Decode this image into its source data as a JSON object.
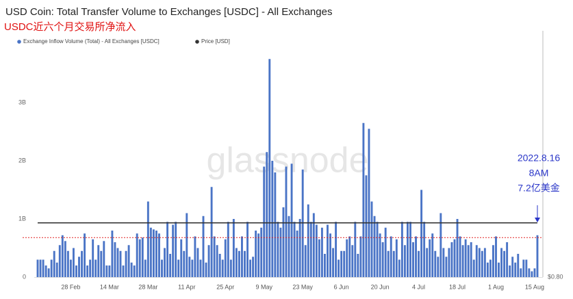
{
  "chart_data": {
    "type": "bar",
    "title": "USD Coin: Total Transfer Volume to Exchanges [USDC] - All Exchanges",
    "subtitle": "USDC近六个月交易所净流入",
    "watermark": "glassnode",
    "categories": [
      null,
      null,
      null,
      null,
      null,
      null,
      null,
      null,
      null,
      null,
      null,
      null,
      "28 Feb",
      null,
      null,
      null,
      null,
      null,
      null,
      null,
      null,
      null,
      null,
      null,
      null,
      null,
      "14 Mar",
      null,
      null,
      null,
      null,
      null,
      null,
      null,
      null,
      null,
      null,
      null,
      null,
      null,
      "28 Mar",
      null,
      null,
      null,
      null,
      null,
      null,
      null,
      null,
      null,
      null,
      null,
      null,
      null,
      "11 Apr",
      null,
      null,
      null,
      null,
      null,
      null,
      null,
      null,
      null,
      null,
      null,
      null,
      null,
      "25 Apr",
      null,
      null,
      null,
      null,
      null,
      null,
      null,
      null,
      null,
      null,
      null,
      null,
      null,
      "9 May",
      null,
      null,
      null,
      null,
      null,
      null,
      null,
      null,
      null,
      null,
      null,
      null,
      null,
      "23 May",
      null,
      null,
      null,
      null,
      null,
      null,
      null,
      null,
      null,
      null,
      null,
      null,
      null,
      "6 Jun",
      null,
      null,
      null,
      null,
      null,
      null,
      null,
      null,
      null,
      null,
      null,
      null,
      null,
      "20 Jun",
      null,
      null,
      null,
      null,
      null,
      null,
      null,
      null,
      null,
      null,
      null,
      null,
      null,
      "4 Jul",
      null,
      null,
      null,
      null,
      null,
      null,
      null,
      null,
      null,
      null,
      null,
      null,
      null,
      "18 Jul",
      null,
      null,
      null,
      null,
      null,
      null,
      null,
      null,
      null,
      null,
      null,
      null,
      null,
      "1 Aug",
      null,
      null,
      null,
      null,
      null,
      null,
      null,
      null,
      null,
      null,
      null,
      null,
      null,
      "15 Aug",
      null
    ],
    "series": [
      {
        "name": "Exchange Inflow Volume (Total) - All Exchanges [USDC]",
        "color": "#4a74c6",
        "values": [
          0.3,
          0.3,
          0.3,
          0.2,
          0.15,
          0.3,
          0.45,
          0.25,
          0.55,
          0.72,
          0.62,
          0.45,
          0.3,
          0.5,
          0.2,
          0.35,
          0.45,
          0.75,
          0.2,
          0.3,
          0.65,
          0.3,
          0.55,
          0.45,
          0.62,
          0.2,
          0.2,
          0.8,
          0.6,
          0.5,
          0.45,
          0.2,
          0.45,
          0.55,
          0.25,
          0.2,
          0.75,
          0.65,
          0.68,
          0.3,
          1.3,
          0.85,
          0.82,
          0.8,
          0.75,
          0.3,
          0.5,
          0.95,
          0.4,
          0.9,
          0.95,
          0.3,
          0.65,
          0.45,
          1.1,
          0.35,
          0.3,
          0.7,
          0.5,
          0.3,
          1.05,
          0.25,
          0.55,
          1.55,
          0.7,
          0.55,
          0.4,
          0.3,
          0.65,
          0.95,
          0.3,
          1.0,
          0.5,
          0.45,
          0.7,
          0.45,
          0.95,
          0.3,
          0.35,
          0.8,
          0.75,
          0.85,
          1.9,
          2.15,
          3.75,
          2.0,
          1.8,
          0.95,
          0.85,
          1.2,
          1.9,
          1.05,
          1.95,
          0.95,
          0.8,
          1.0,
          1.85,
          0.55,
          1.25,
          0.95,
          1.1,
          0.9,
          0.65,
          0.85,
          0.4,
          0.9,
          0.75,
          0.5,
          0.95,
          0.3,
          0.45,
          0.45,
          0.65,
          0.7,
          0.55,
          0.95,
          0.4,
          0.7,
          2.65,
          1.75,
          2.55,
          1.3,
          1.05,
          0.95,
          0.75,
          0.6,
          0.85,
          0.45,
          0.7,
          0.45,
          0.65,
          0.3,
          0.95,
          0.55,
          0.95,
          0.95,
          0.6,
          0.7,
          0.45,
          1.5,
          0.95,
          0.5,
          0.65,
          0.75,
          0.45,
          0.35,
          1.1,
          0.5,
          0.35,
          0.5,
          0.6,
          0.65,
          1.0,
          0.7,
          0.55,
          0.65,
          0.55,
          0.6,
          0.3,
          0.55,
          0.5,
          0.45,
          0.5,
          0.25,
          0.3,
          0.55,
          0.7,
          0.25,
          0.5,
          0.45,
          0.6,
          0.2,
          0.35,
          0.25,
          0.4,
          0.15,
          0.3,
          0.3,
          0.15,
          0.1,
          0.15,
          0.72
        ]
      },
      {
        "name": "Price [USD]",
        "color": "#333333",
        "axis": "y2",
        "values": [
          1,
          1,
          1,
          1,
          1,
          1,
          1,
          1,
          1,
          1,
          1,
          1,
          1,
          1,
          1,
          1,
          1,
          1,
          1,
          1,
          1,
          1,
          1,
          1,
          1,
          1,
          1,
          1,
          1,
          1,
          1,
          1,
          1,
          1,
          1,
          1,
          1,
          1,
          1,
          1,
          1,
          1,
          1,
          1,
          1,
          1,
          1,
          1,
          1,
          1,
          1,
          1,
          1,
          1,
          1,
          1,
          1,
          1,
          1,
          1,
          1,
          1,
          1,
          1,
          1,
          1,
          1,
          1,
          1,
          1,
          1,
          1,
          1,
          1,
          1,
          1,
          1,
          1,
          1,
          1,
          1,
          1,
          1,
          1,
          1,
          1,
          1,
          1,
          1,
          1,
          1,
          1,
          1,
          1,
          1,
          1,
          1,
          1,
          1,
          1,
          1,
          1,
          1,
          1,
          1,
          1,
          1,
          1,
          1,
          1,
          1,
          1,
          1,
          1,
          1,
          1,
          1,
          1,
          1,
          1,
          1,
          1,
          1,
          1,
          1,
          1,
          1,
          1,
          1,
          1,
          1,
          1,
          1,
          1,
          1,
          1,
          1,
          1,
          1,
          1,
          1,
          1,
          1,
          1,
          1,
          1,
          1,
          1,
          1,
          1,
          1,
          1,
          1,
          1,
          1,
          1,
          1,
          1,
          1,
          1,
          1,
          1,
          1,
          1,
          1,
          1,
          1,
          1,
          1,
          1,
          1,
          1,
          1,
          1,
          1,
          1,
          1,
          1,
          1,
          1,
          1,
          1
        ]
      }
    ],
    "ylim": [
      0,
      4.2
    ],
    "yticks": [
      0,
      {
        "value": 1,
        "label": "1B"
      },
      {
        "value": 2,
        "label": "2B"
      },
      {
        "value": 3,
        "label": "3B"
      }
    ],
    "y2lim": [
      0.8,
      1.7
    ],
    "y2ticks": [
      {
        "value": 0.8,
        "label": "$0.80"
      }
    ],
    "reference_line": {
      "value": 0.68,
      "color": "#e02020"
    },
    "annotation": {
      "lines": [
        "2022.8.16",
        "8AM",
        "7.2亿美金"
      ],
      "color": "#2a36c8"
    }
  }
}
